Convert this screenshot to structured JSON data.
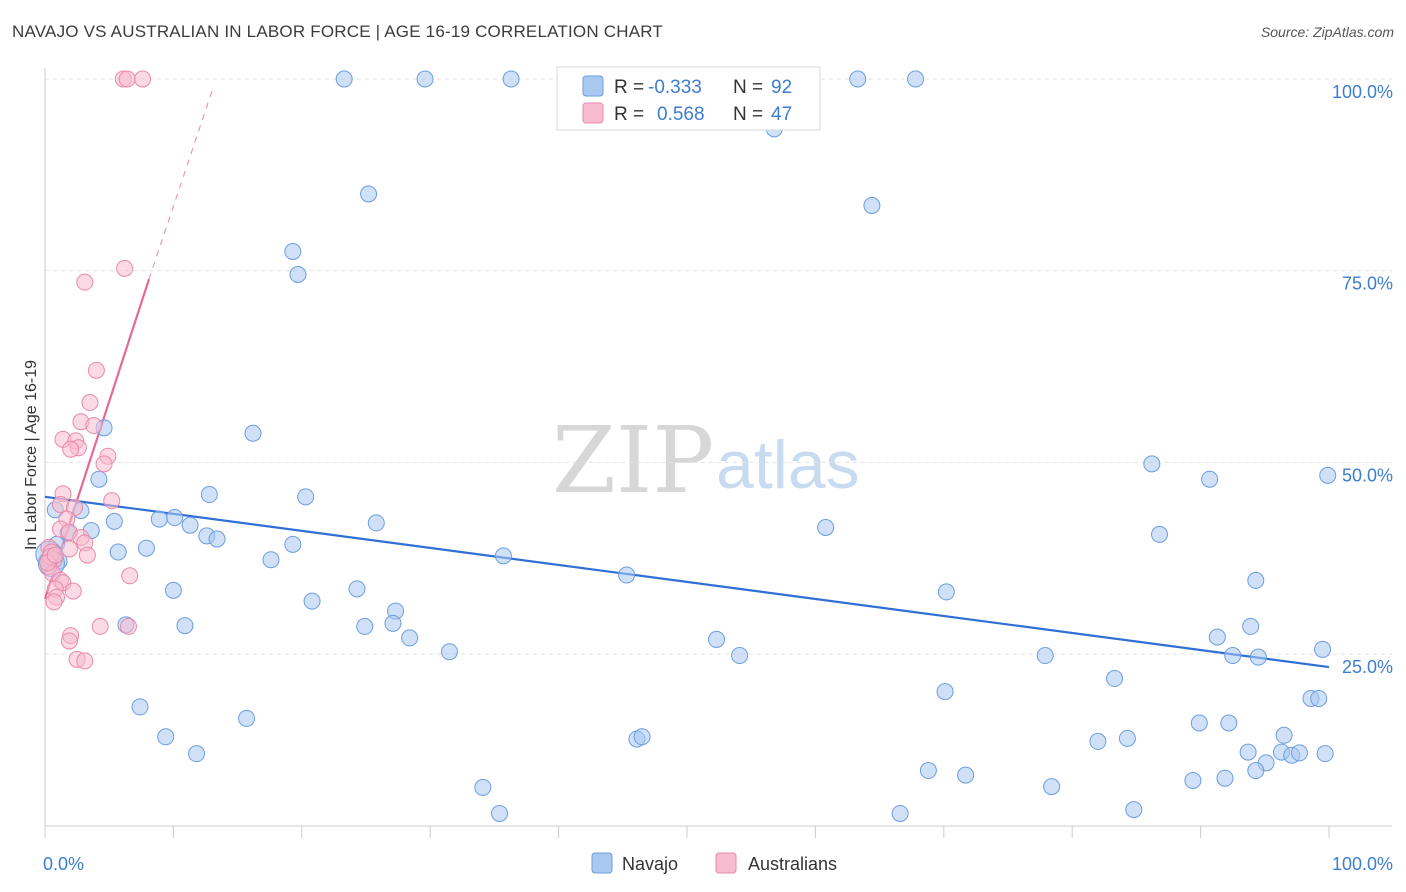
{
  "header": {
    "title": "NAVAJO VS AUSTRALIAN IN LABOR FORCE | AGE 16-19 CORRELATION CHART",
    "source": "Source: ZipAtlas.com"
  },
  "watermark": {
    "zip": "ZIP",
    "atlas": "atlas"
  },
  "legend": {
    "rows": [
      {
        "r_label": "R =",
        "r_value": "-0.333",
        "n_label": "N =",
        "n_value": "92",
        "color": "#a9c8f0",
        "stroke": "#6b9ee0"
      },
      {
        "r_label": "R =",
        "r_value": "0.568",
        "n_label": "N =",
        "n_value": "47",
        "color": "#f8bcd0",
        "stroke": "#e98aa8"
      }
    ]
  },
  "bottom_legend": [
    {
      "label": "Navajo",
      "color": "#a9c8f0",
      "stroke": "#6b9ee0"
    },
    {
      "label": "Australians",
      "color": "#f8bcd0",
      "stroke": "#e98aa8"
    }
  ],
  "chart_data": {
    "type": "scatter",
    "title": "NAVAJO VS AUSTRALIAN IN LABOR FORCE | AGE 16-19 CORRELATION CHART",
    "xlabel": "",
    "ylabel": "In Labor Force | Age 16-19",
    "xlim": [
      0,
      100
    ],
    "ylim": [
      0,
      105
    ],
    "x_tick_labels": [
      {
        "value": 0,
        "label": "0.0%"
      },
      {
        "value": 100,
        "label": "100.0%"
      }
    ],
    "y_tick_labels": [
      {
        "value": 25,
        "label": "25.0%"
      },
      {
        "value": 50,
        "label": "50.0%"
      },
      {
        "value": 75,
        "label": "75.0%"
      },
      {
        "value": 100,
        "label": "100.0%"
      }
    ],
    "grid": true,
    "series": [
      {
        "name": "Navajo",
        "color": "#a9c8f0",
        "stroke": "#6b9ee0",
        "line_color": "#2f6fd6",
        "trend": {
          "x": [
            0,
            100
          ],
          "y": [
            45.5,
            23.3
          ]
        },
        "points": [
          [
            23.3,
            100
          ],
          [
            29.6,
            100
          ],
          [
            36.3,
            100
          ],
          [
            63.3,
            100
          ],
          [
            67.8,
            100
          ],
          [
            56.8,
            93.5
          ],
          [
            25.2,
            85
          ],
          [
            64.4,
            83.5
          ],
          [
            19.3,
            77.5
          ],
          [
            19.7,
            74.5
          ],
          [
            4.6,
            54.5
          ],
          [
            16.2,
            53.8
          ],
          [
            86.2,
            49.8
          ],
          [
            90.7,
            47.8
          ],
          [
            99.9,
            48.3
          ],
          [
            4.2,
            47.8
          ],
          [
            12.8,
            45.8
          ],
          [
            20.3,
            45.5
          ],
          [
            0.8,
            43.8
          ],
          [
            2.8,
            43.7
          ],
          [
            5.4,
            42.3
          ],
          [
            8.9,
            42.6
          ],
          [
            10.1,
            42.8
          ],
          [
            11.3,
            41.8
          ],
          [
            25.8,
            42.1
          ],
          [
            3.6,
            41.1
          ],
          [
            12.6,
            40.4
          ],
          [
            13.4,
            40
          ],
          [
            1.8,
            40.8
          ],
          [
            0.9,
            39.3
          ],
          [
            19.3,
            39.3
          ],
          [
            5.7,
            38.3
          ],
          [
            7.9,
            38.8
          ],
          [
            17.6,
            37.3
          ],
          [
            35.7,
            37.8
          ],
          [
            60.8,
            41.5
          ],
          [
            86.8,
            40.6
          ],
          [
            1.1,
            37.1
          ],
          [
            45.3,
            35.3
          ],
          [
            94.3,
            34.6
          ],
          [
            10,
            33.3
          ],
          [
            24.3,
            33.5
          ],
          [
            70.2,
            33.1
          ],
          [
            20.8,
            31.9
          ],
          [
            27.3,
            30.6
          ],
          [
            6.3,
            28.8
          ],
          [
            10.9,
            28.7
          ],
          [
            24.9,
            28.6
          ],
          [
            27.1,
            29
          ],
          [
            28.4,
            27.1
          ],
          [
            91.3,
            27.2
          ],
          [
            93.9,
            28.6
          ],
          [
            99.5,
            25.6
          ],
          [
            31.5,
            25.3
          ],
          [
            52.3,
            26.9
          ],
          [
            54.1,
            24.8
          ],
          [
            77.9,
            24.8
          ],
          [
            92.5,
            24.8
          ],
          [
            94.5,
            24.6
          ],
          [
            83.3,
            21.8
          ],
          [
            70.1,
            20.1
          ],
          [
            98.6,
            19.2
          ],
          [
            99.2,
            19.2
          ],
          [
            7.4,
            18.1
          ],
          [
            15.7,
            16.6
          ],
          [
            89.9,
            16
          ],
          [
            92.2,
            16
          ],
          [
            9.4,
            14.2
          ],
          [
            46.1,
            13.9
          ],
          [
            46.5,
            14.2
          ],
          [
            82,
            13.6
          ],
          [
            84.3,
            14
          ],
          [
            93.7,
            12.2
          ],
          [
            96.5,
            14.4
          ],
          [
            11.8,
            12
          ],
          [
            96.3,
            12.2
          ],
          [
            97.1,
            11.8
          ],
          [
            97.7,
            12.1
          ],
          [
            99.7,
            12
          ],
          [
            95.1,
            10.8
          ],
          [
            68.8,
            9.8
          ],
          [
            71.7,
            9.2
          ],
          [
            94.3,
            9.8
          ],
          [
            89.4,
            8.5
          ],
          [
            91.9,
            8.8
          ],
          [
            34.1,
            7.6
          ],
          [
            78.4,
            7.7
          ],
          [
            35.4,
            4.2
          ],
          [
            66.6,
            4.2
          ],
          [
            84.8,
            4.7
          ],
          [
            0.3,
            38.0
          ],
          [
            0.5,
            36.8
          ]
        ]
      },
      {
        "name": "Australians",
        "color": "#f8bcd0",
        "stroke": "#e98aa8",
        "line_color": "#e46a95",
        "trend": {
          "x": [
            0,
            8.1
          ],
          "y": [
            32.2,
            73.9
          ]
        },
        "trend_dashed": {
          "x": [
            8.1,
            13.1
          ],
          "y": [
            73.9,
            98.9
          ]
        },
        "points": [
          [
            6.1,
            100
          ],
          [
            6.4,
            100
          ],
          [
            7.6,
            100
          ],
          [
            6.2,
            75.3
          ],
          [
            3.1,
            73.5
          ],
          [
            4,
            62
          ],
          [
            3.5,
            57.8
          ],
          [
            2.8,
            55.3
          ],
          [
            3.8,
            54.8
          ],
          [
            1.4,
            53
          ],
          [
            2.4,
            52.8
          ],
          [
            2.6,
            51.9
          ],
          [
            2,
            51.7
          ],
          [
            4.9,
            50.8
          ],
          [
            4.6,
            49.8
          ],
          [
            1.4,
            45.9
          ],
          [
            5.2,
            45
          ],
          [
            1.2,
            44.5
          ],
          [
            2.3,
            44.1
          ],
          [
            1.7,
            42.6
          ],
          [
            1.2,
            41.3
          ],
          [
            1.9,
            40.9
          ],
          [
            2.8,
            40.2
          ],
          [
            3.1,
            39.5
          ],
          [
            0.3,
            38.9
          ],
          [
            1.9,
            38.7
          ],
          [
            0.5,
            38.3
          ],
          [
            3.3,
            37.9
          ],
          [
            0.7,
            37.3
          ],
          [
            0.3,
            36.4
          ],
          [
            0.6,
            35.5
          ],
          [
            6.6,
            35.2
          ],
          [
            1.2,
            34.6
          ],
          [
            1.4,
            34.3
          ],
          [
            0.8,
            33.5
          ],
          [
            2.2,
            33.2
          ],
          [
            0.9,
            32.4
          ],
          [
            0.7,
            31.8
          ],
          [
            4.3,
            28.6
          ],
          [
            6.5,
            28.6
          ],
          [
            2,
            27.4
          ],
          [
            1.9,
            26.7
          ],
          [
            2.5,
            24.3
          ],
          [
            3.1,
            24.1
          ],
          [
            0.4,
            37.7
          ],
          [
            0.2,
            36.9
          ],
          [
            0.8,
            37.9
          ]
        ]
      }
    ]
  }
}
